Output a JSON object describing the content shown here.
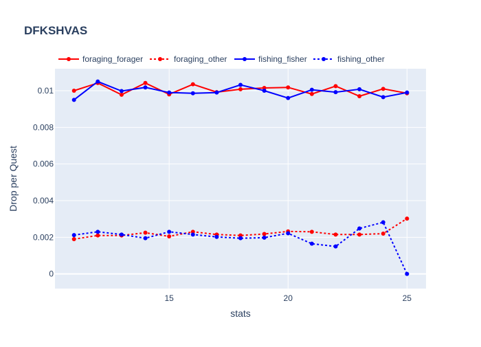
{
  "chart_data": {
    "type": "line",
    "title": "DFKSHVAS",
    "xlabel": "stats",
    "ylabel": "Drop per Quest",
    "xlim": [
      10.2,
      25.8
    ],
    "ylim": [
      -0.0008,
      0.0112
    ],
    "x_ticks": [
      15,
      20,
      25
    ],
    "x_tick_labels": [
      "15",
      "20",
      "25"
    ],
    "y_ticks": [
      0,
      0.002,
      0.004,
      0.006,
      0.008,
      0.01
    ],
    "y_tick_labels": [
      "0",
      "0.002",
      "0.004",
      "0.006",
      "0.008",
      "0.01"
    ],
    "grid": true,
    "legend_position": "top-left, horizontal",
    "x": [
      11,
      12,
      13,
      14,
      15,
      16,
      17,
      18,
      19,
      20,
      21,
      22,
      23,
      24,
      25
    ],
    "series": [
      {
        "name": "foraging_forager",
        "color": "#ff0000",
        "dash": "solid",
        "x": [
          11,
          12,
          13,
          14,
          15,
          16,
          17,
          18,
          19,
          20,
          21,
          22,
          23,
          24,
          25
        ],
        "values": [
          0.01,
          0.01042,
          0.00978,
          0.01042,
          0.0098,
          0.01035,
          0.00992,
          0.01008,
          0.01015,
          0.01018,
          0.00982,
          0.01025,
          0.0097,
          0.0101,
          0.00986
        ]
      },
      {
        "name": "foraging_other",
        "color": "#ff0000",
        "dash": "dot",
        "x": [
          11,
          12,
          13,
          14,
          15,
          16,
          17,
          18,
          19,
          20,
          21,
          22,
          23,
          24,
          25
        ],
        "values": [
          0.0019,
          0.0021,
          0.0021,
          0.00225,
          0.00205,
          0.0023,
          0.00215,
          0.0021,
          0.00218,
          0.00232,
          0.0023,
          0.00215,
          0.00215,
          0.0022,
          0.00302
        ]
      },
      {
        "name": "fishing_fisher",
        "color": "#0000ff",
        "dash": "solid",
        "x": [
          11,
          12,
          13,
          14,
          15,
          16,
          17,
          18,
          19,
          20,
          21,
          22,
          23,
          24,
          25
        ],
        "values": [
          0.0095,
          0.0105,
          0.00998,
          0.01018,
          0.0099,
          0.00986,
          0.0099,
          0.01032,
          0.01,
          0.0096,
          0.01005,
          0.00992,
          0.01008,
          0.00965,
          0.0099
        ]
      },
      {
        "name": "fishing_other",
        "color": "#0000ff",
        "dash": "dot",
        "x": [
          11,
          12,
          13,
          14,
          15,
          16,
          17,
          18,
          19,
          20,
          21,
          22,
          23,
          24,
          25
        ],
        "values": [
          0.00212,
          0.0023,
          0.00215,
          0.00195,
          0.0023,
          0.00215,
          0.00202,
          0.00195,
          0.00198,
          0.00222,
          0.00165,
          0.0015,
          0.00248,
          0.00282,
          0.0
        ]
      }
    ]
  },
  "colors": {
    "plot_background": "#e5ecf6",
    "grid": "#ffffff",
    "text": "#2a3f5f",
    "zero_line": "#ffffff"
  }
}
